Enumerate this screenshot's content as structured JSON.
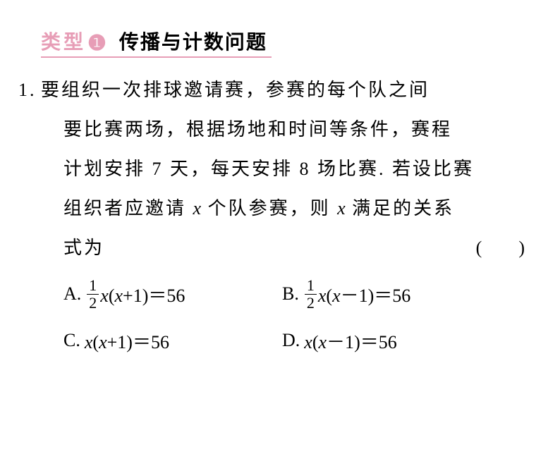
{
  "header": {
    "label": "类型",
    "number": "❶",
    "title": "传播与计数问题",
    "label_color": "#e79db6",
    "number_color": "#e79db6",
    "border_color": "#e79db6"
  },
  "question": {
    "number": "1.",
    "text_line1_pre": "要组织一次排球邀请赛，参赛的每个队之间",
    "text_line2": "要比赛两场，根据场地和时间等条件，赛程",
    "text_line3": "计划安排 7 天，每天安排 8 场比赛. 若设比赛",
    "text_line4_a": "组织者应邀请 ",
    "text_line4_b": " 个队参赛，则 ",
    "text_line4_c": " 满足的关系",
    "text_line5": "式为",
    "var": "x",
    "paren": "(        )"
  },
  "options": {
    "A": {
      "label": "A.",
      "frac_num": "1",
      "frac_den": "2",
      "var": "x",
      "expr_open": "(",
      "var2": "x",
      "op": "+1",
      "expr_close": ")",
      "eq": "＝56"
    },
    "B": {
      "label": "B.",
      "frac_num": "1",
      "frac_den": "2",
      "var": "x",
      "expr_open": "(",
      "var2": "x",
      "op": "－1",
      "expr_close": ")",
      "eq": "＝56"
    },
    "C": {
      "label": "C.",
      "var": "x",
      "expr_open": "(",
      "var2": "x",
      "op": "+1",
      "expr_close": ")",
      "eq": "＝56"
    },
    "D": {
      "label": "D.",
      "var": "x",
      "expr_open": "(",
      "var2": "x",
      "op": "－1",
      "expr_close": ")",
      "eq": "＝56"
    }
  },
  "colors": {
    "text": "#000000",
    "bg": "#ffffff"
  }
}
